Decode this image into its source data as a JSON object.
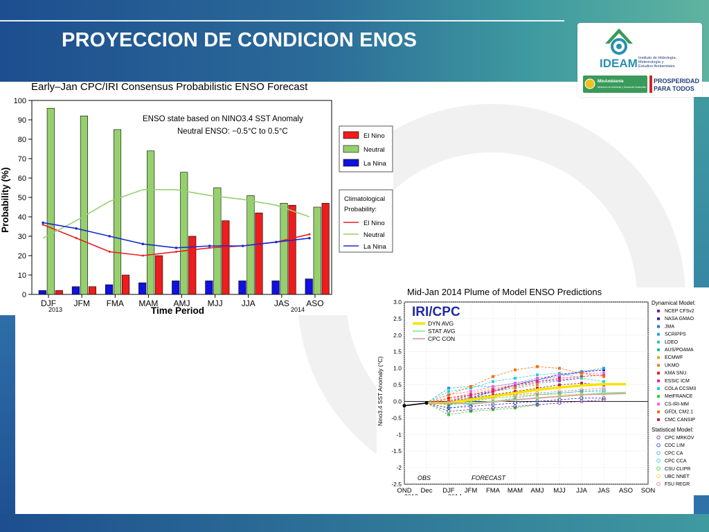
{
  "slide": {
    "title": "PROYECCION DE CONDICION ENOS"
  },
  "logo": {
    "brand": "IDEAM",
    "institute_lines": [
      "Instituto de Hidrología,",
      "Meteorología y",
      "Estudios Ambientales"
    ],
    "ministry": "MinAmbiente",
    "ministry_sub": "Ministerio de Ambiente y Desarrollo Sostenible",
    "slogan_lines": [
      "PROSPERIDAD",
      "PARA TODOS"
    ],
    "colors": {
      "green": "#3a9a5a",
      "teal": "#2a8fb0",
      "navy": "#1d3f7a",
      "red": "#d42028"
    }
  },
  "chart_data": [
    {
      "type": "bar",
      "title": "Early–Jan CPC/IRI Consensus Probabilistic ENSO Forecast",
      "xlabel": "Time Period",
      "ylabel": "Probability (%)",
      "ylim": [
        0,
        100
      ],
      "yticks": [
        "0",
        "10",
        "20",
        "30",
        "40",
        "50",
        "60",
        "70",
        "80",
        "90",
        "100"
      ],
      "categories": [
        "DJF",
        "JFM",
        "FMA",
        "MAM",
        "AMJ",
        "MJJ",
        "JJA",
        "JAS",
        "ASO"
      ],
      "year_labels": {
        "first": "2013",
        "last": "2014"
      },
      "annotation_lines": [
        "ENSO state based on NINO3.4 SST Anomaly",
        "Neutral ENSO: −0.5°C to 0.5°C"
      ],
      "series": [
        {
          "name": "La Nina",
          "color": "#1010e0",
          "values": [
            2,
            4,
            5,
            6,
            7,
            7,
            7,
            7,
            8
          ]
        },
        {
          "name": "Neutral",
          "color": "#96d06e",
          "values": [
            96,
            92,
            85,
            74,
            63,
            55,
            51,
            47,
            45
          ]
        },
        {
          "name": "El Nino",
          "color": "#ee1c1c",
          "values": [
            2,
            4,
            10,
            20,
            30,
            38,
            42,
            46,
            47
          ]
        }
      ],
      "climatology_title_lines": [
        "Climatological",
        "Probability:"
      ],
      "climatology": [
        {
          "name": "El Nino",
          "color": "#ee1c1c",
          "values": [
            36,
            29,
            22,
            20,
            22,
            24,
            25,
            27,
            31
          ]
        },
        {
          "name": "Neutral",
          "color": "#96d06e",
          "values": [
            29,
            38,
            48,
            54,
            54,
            51,
            49,
            46,
            40
          ]
        },
        {
          "name": "La Nina",
          "color": "#1a2ad0",
          "values": [
            37,
            34,
            30,
            26,
            24,
            25,
            25,
            27,
            29
          ]
        }
      ],
      "legend_placement": "right"
    },
    {
      "type": "line",
      "title": "Mid-Jan 2014 Plume of Model ENSO Predictions",
      "ylabel": "Nino3.4 SST Anomaly (°C)",
      "ylim": [
        -2.5,
        3.0
      ],
      "yticks": [
        "-2.5",
        "-2",
        "-1.5",
        "-1",
        "-0.5",
        "0.0",
        "0.5",
        "1.0",
        "1.5",
        "2.0",
        "2.5",
        "3.0"
      ],
      "categories": [
        "OND",
        "Dec",
        "DJF",
        "JFM",
        "FMA",
        "MAM",
        "AMJ",
        "MJJ",
        "JJA",
        "JAS",
        "ASO",
        "SON"
      ],
      "year_labels": {
        "first": "2013",
        "second": "2014"
      },
      "logo_text": "IRI/CPC",
      "obs_label": "OBS",
      "forecast_label": "FORECAST",
      "observed": [
        -0.13,
        -0.05
      ],
      "averages": [
        {
          "name": "DYN AVG",
          "color": "#f5e400",
          "values": [
            -0.05,
            -0.05,
            0.05,
            0.15,
            0.25,
            0.35,
            0.42,
            0.48,
            0.52,
            0.52
          ]
        },
        {
          "name": "STAT AVG",
          "color": "#90e890",
          "values": [
            -0.05,
            -0.05,
            -0.05,
            0.0,
            0.05,
            0.1,
            0.15,
            0.2,
            0.25,
            0.27
          ]
        },
        {
          "name": "CPC CON",
          "color": "#d8a0a0",
          "values": [
            -0.05,
            -0.05,
            -0.08,
            -0.02,
            0.05,
            0.1,
            0.15,
            0.2,
            0.22,
            0.24
          ]
        }
      ],
      "legend_dynamical_title": "Dynamical Model:",
      "legend_statistical_title": "Statistical Model:",
      "dynamical_models": [
        {
          "name": "NCEP CFSv2",
          "color": "#7a1fa0",
          "values": [
            -0.05,
            -0.1,
            0.1,
            0.3,
            0.5,
            0.65,
            0.8,
            0.9,
            0.95
          ]
        },
        {
          "name": "NASA GMAO",
          "color": "#2a2ab0",
          "values": [
            -0.05,
            -0.05,
            0.1,
            0.3,
            0.5,
            0.65,
            0.82,
            0.88,
            0.95
          ]
        },
        {
          "name": "JMA",
          "color": "#2a7ad0",
          "values": [
            -0.05,
            0.0,
            0.15,
            0.3,
            0.45,
            0.55,
            0.62,
            0.7
          ]
        },
        {
          "name": "SCRIPPS",
          "color": "#20a0e0",
          "values": [
            -0.05,
            0.4,
            0.45,
            0.45,
            0.55,
            0.65,
            0.75,
            0.9,
            1.0
          ]
        },
        {
          "name": "LDEO",
          "color": "#20c8c8",
          "values": [
            -0.05,
            -0.2,
            -0.1,
            0.0,
            0.1,
            0.2,
            0.25,
            0.3
          ]
        },
        {
          "name": "AUS/POAMA",
          "color": "#20c080",
          "values": [
            -0.05,
            0.0,
            0.1,
            0.2,
            0.3,
            0.4,
            0.5,
            0.55
          ]
        },
        {
          "name": "ECMWF",
          "color": "#f0a020",
          "values": [
            -0.05,
            0.1,
            0.25,
            0.4,
            0.5,
            0.55
          ]
        },
        {
          "name": "UKMO",
          "color": "#f08020",
          "values": [
            -0.05,
            0.05,
            0.2,
            0.3,
            0.4,
            0.5
          ]
        },
        {
          "name": "KMA SNU",
          "color": "#e02020",
          "values": [
            -0.05,
            0.1,
            0.2,
            0.3,
            0.5,
            0.6,
            0.7,
            0.75,
            0.8
          ]
        },
        {
          "name": "ESSIC ICM",
          "color": "#e020a0",
          "values": [
            -0.05,
            0.0,
            0.2,
            0.35,
            0.5,
            0.6,
            0.65,
            0.7
          ]
        },
        {
          "name": "COLA CCSM3",
          "color": "#20d0d0",
          "values": [
            -0.05,
            0.3,
            0.4,
            0.6,
            0.7,
            0.8,
            0.85,
            0.7,
            0.6
          ]
        },
        {
          "name": "MetFRANCE",
          "color": "#30d030",
          "values": [
            -0.05,
            -0.4,
            -0.3,
            -0.25,
            -0.2,
            -0.1
          ]
        },
        {
          "name": "CS-IRI-MM",
          "color": "#f060f0",
          "values": [
            -0.05,
            0.2,
            0.3,
            0.45,
            0.55,
            0.7,
            0.8,
            0.85,
            0.85
          ]
        },
        {
          "name": "GFDL CM2.1",
          "color": "#f07010",
          "values": [
            -0.05,
            0.2,
            0.45,
            0.75,
            0.95,
            1.05,
            1.0,
            0.85,
            0.75
          ]
        },
        {
          "name": "CMC CANSIP",
          "color": "#c02040",
          "values": [
            -0.05,
            0.0,
            0.1,
            0.2,
            0.3,
            0.4,
            0.5,
            0.55,
            0.5
          ]
        }
      ],
      "statistical_models": [
        {
          "name": "CPC MRKOV",
          "color": "#7a1fa0",
          "values": [
            -0.05,
            -0.3,
            -0.25,
            -0.2,
            -0.15,
            -0.1,
            -0.05,
            0.0,
            0.05
          ]
        },
        {
          "name": "CDC LIM",
          "color": "#2a2ab0",
          "values": [
            -0.05,
            -0.2,
            -0.15,
            -0.1,
            -0.05,
            0.0,
            0.05,
            0.1,
            0.1
          ]
        },
        {
          "name": "CPC CA",
          "color": "#20a0e0",
          "values": [
            -0.05,
            -0.1,
            0.0,
            0.1,
            0.15,
            0.2,
            0.25,
            0.3,
            0.3
          ]
        },
        {
          "name": "CPC CCA",
          "color": "#20c8c8",
          "values": [
            -0.05,
            0.0,
            0.05,
            0.1,
            0.15,
            0.2,
            0.25,
            0.3,
            0.35
          ]
        },
        {
          "name": "CSU CLIPR",
          "color": "#30d030",
          "values": [
            -0.05,
            -0.1,
            -0.05,
            0.0,
            0.05,
            0.1,
            0.15,
            0.2,
            0.25
          ]
        },
        {
          "name": "UBC NNET",
          "color": "#f0d020",
          "values": [
            -0.05,
            0.0,
            0.05,
            0.1,
            0.15,
            0.2,
            0.2,
            0.22,
            0.2
          ]
        },
        {
          "name": "FSU REGR",
          "color": "#e07070",
          "values": [
            -0.05,
            0.0,
            0.1,
            0.15,
            0.2,
            0.25,
            0.3,
            0.35,
            0.4
          ]
        }
      ]
    }
  ]
}
